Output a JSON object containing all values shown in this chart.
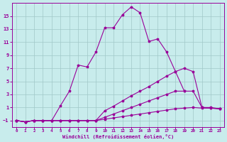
{
  "xlabel": "Windchill (Refroidissement éolien,°C)",
  "bg_color": "#c8ecec",
  "grid_color": "#a0c8c8",
  "line_color": "#990099",
  "x_ticks": [
    0,
    1,
    2,
    3,
    4,
    5,
    6,
    7,
    8,
    9,
    10,
    11,
    12,
    13,
    14,
    15,
    16,
    17,
    18,
    19,
    20,
    21,
    22,
    23
  ],
  "y_ticks": [
    -1,
    1,
    3,
    5,
    7,
    9,
    11,
    13,
    15
  ],
  "ylim": [
    -2.0,
    17.0
  ],
  "xlim": [
    -0.5,
    23.5
  ],
  "lines": [
    {
      "x": [
        0,
        1,
        2,
        3,
        4,
        5,
        6,
        7,
        8,
        9,
        10,
        11,
        12,
        13,
        14,
        15,
        16,
        17,
        18,
        19,
        20,
        21,
        22,
        23
      ],
      "y": [
        -1.0,
        -1.2,
        -1.0,
        -1.0,
        -1.0,
        1.3,
        3.5,
        7.5,
        7.2,
        9.5,
        13.2,
        13.2,
        15.2,
        16.4,
        15.5,
        11.1,
        11.5,
        9.5,
        6.5,
        3.5,
        null,
        null,
        null,
        null
      ]
    },
    {
      "x": [
        0,
        1,
        2,
        3,
        4,
        5,
        6,
        7,
        8,
        9,
        10,
        11,
        12,
        13,
        14,
        15,
        16,
        17,
        18,
        19,
        20,
        21,
        22,
        23
      ],
      "y": [
        -1.0,
        -1.2,
        -1.0,
        -1.0,
        -1.0,
        -1.0,
        -1.0,
        -1.0,
        -1.0,
        -1.0,
        -0.8,
        -0.6,
        -0.4,
        -0.2,
        0.0,
        0.2,
        0.4,
        0.6,
        0.8,
        0.9,
        1.0,
        0.9,
        0.9,
        0.8
      ]
    },
    {
      "x": [
        0,
        1,
        2,
        3,
        4,
        5,
        6,
        7,
        8,
        9,
        10,
        11,
        12,
        13,
        14,
        15,
        16,
        17,
        18,
        19,
        20,
        21,
        22,
        23
      ],
      "y": [
        -1.0,
        -1.2,
        -1.0,
        -1.0,
        -1.0,
        -1.0,
        -1.0,
        -1.0,
        -1.0,
        -1.0,
        -0.5,
        0.0,
        0.5,
        1.0,
        1.5,
        2.0,
        2.5,
        3.0,
        3.5,
        3.5,
        3.5,
        1.0,
        0.9,
        0.8
      ]
    },
    {
      "x": [
        0,
        1,
        2,
        3,
        4,
        5,
        6,
        7,
        8,
        9,
        10,
        11,
        12,
        13,
        14,
        15,
        16,
        17,
        18,
        19,
        20,
        21,
        22,
        23
      ],
      "y": [
        -1.0,
        -1.2,
        -1.0,
        -1.0,
        -1.0,
        -1.0,
        -1.0,
        -1.0,
        -1.0,
        -1.0,
        0.5,
        1.2,
        2.0,
        2.8,
        3.5,
        4.2,
        5.0,
        5.8,
        6.5,
        7.0,
        6.5,
        1.0,
        1.0,
        0.8
      ]
    }
  ]
}
